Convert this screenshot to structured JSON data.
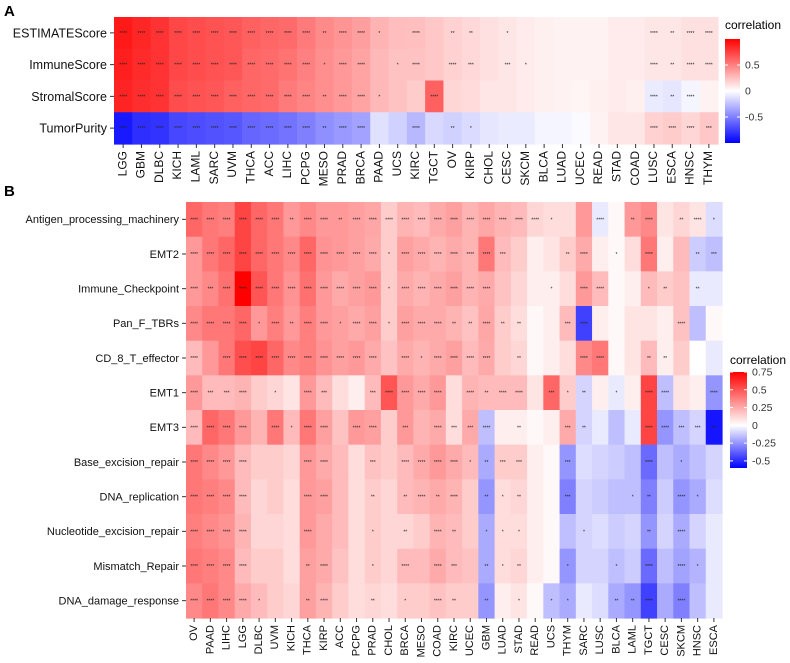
{
  "chart_data": [
    {
      "panel_label": "A",
      "type": "heatmap",
      "columns": [
        "LGG",
        "GBM",
        "DLBC",
        "KICH",
        "LAML",
        "SARC",
        "UVM",
        "THCA",
        "ACC",
        "LIHC",
        "PCPG",
        "MESO",
        "PRAD",
        "BRCA",
        "PAAD",
        "UCS",
        "KIRC",
        "TGCT",
        "OV",
        "KIRP",
        "CHOL",
        "CESC",
        "SKCM",
        "BLCA",
        "LUAD",
        "UCEC",
        "READ",
        "STAD",
        "COAD",
        "LUSC",
        "ESCA",
        "HNSC",
        "THYM"
      ],
      "rows": [
        "ESTIMATEScore",
        "ImmuneScore",
        "StromalScore",
        "TumorPurity"
      ],
      "values": [
        [
          0.9,
          0.85,
          0.8,
          0.72,
          0.7,
          0.68,
          0.66,
          0.62,
          0.6,
          0.58,
          0.52,
          0.46,
          0.42,
          0.38,
          0.3,
          0.26,
          0.25,
          0.22,
          0.18,
          0.15,
          0.12,
          0.1,
          0.08,
          0.06,
          0.05,
          0.05,
          0.05,
          0.08,
          0.08,
          0.1,
          0.1,
          0.12,
          0.12
        ],
        [
          0.88,
          0.83,
          0.8,
          0.72,
          0.7,
          0.68,
          0.66,
          0.6,
          0.58,
          0.55,
          0.5,
          0.44,
          0.4,
          0.36,
          0.28,
          0.24,
          0.24,
          0.22,
          0.18,
          0.15,
          0.12,
          0.1,
          0.08,
          0.06,
          0.05,
          0.05,
          0.05,
          0.08,
          0.08,
          0.1,
          0.1,
          0.12,
          0.12
        ],
        [
          0.86,
          0.82,
          0.8,
          0.7,
          0.68,
          0.66,
          0.62,
          0.6,
          0.58,
          0.52,
          0.48,
          0.44,
          0.4,
          0.36,
          0.28,
          0.24,
          0.2,
          0.62,
          0.16,
          0.14,
          0.1,
          0.1,
          0.08,
          0.06,
          0.05,
          0.04,
          0.06,
          0.08,
          0.06,
          -0.08,
          -0.1,
          -0.04,
          0.05
        ],
        [
          -0.9,
          -0.82,
          -0.8,
          -0.72,
          -0.7,
          -0.68,
          -0.66,
          -0.6,
          -0.58,
          -0.55,
          -0.5,
          -0.44,
          -0.4,
          -0.36,
          -0.12,
          -0.18,
          -0.28,
          -0.15,
          -0.18,
          -0.14,
          -0.1,
          -0.08,
          -0.08,
          -0.04,
          -0.04,
          -0.02,
          0.05,
          0.1,
          0.1,
          0.18,
          0.2,
          0.16,
          0.22
        ]
      ],
      "labels": [
        [
          "****",
          "****",
          "****",
          "****",
          "****",
          "****",
          "****",
          "****",
          "****",
          "****",
          "****",
          "**",
          "****",
          "****",
          "*",
          "",
          "****",
          "",
          "**",
          "**",
          "",
          "*",
          "",
          "",
          "",
          "",
          "",
          "",
          "",
          "****",
          "**",
          "****",
          "****"
        ],
        [
          "****",
          "****",
          "****",
          "****",
          "****",
          "****",
          "****",
          "****",
          "****",
          "****",
          "****",
          "*",
          "****",
          "****",
          "",
          "*",
          "****",
          "",
          "****",
          "***",
          "",
          "***",
          "*",
          "",
          "",
          "",
          "",
          "",
          "",
          "****",
          "**",
          "****",
          "****"
        ],
        [
          "****",
          "****",
          "****",
          "****",
          "****",
          "****",
          "****",
          "****",
          "****",
          "****",
          "****",
          "**",
          "****",
          "****",
          "*",
          "",
          "",
          "****",
          "",
          "",
          "",
          "",
          "",
          "",
          "",
          "",
          "",
          "",
          "",
          "****",
          "**",
          "****",
          ""
        ],
        [
          "****",
          "****",
          "****",
          "****",
          "****",
          "****",
          "****",
          "****",
          "****",
          "****",
          "****",
          "**",
          "****",
          "****",
          "",
          "",
          "****",
          "",
          "**",
          "*",
          "",
          "",
          "",
          "",
          "",
          "",
          "",
          "",
          "",
          "****",
          "****",
          "****",
          "***"
        ]
      ],
      "legend": {
        "title": "correlation",
        "ticks": [
          0.5,
          0.0,
          -0.5
        ],
        "min": -1,
        "max": 1
      }
    },
    {
      "panel_label": "B",
      "type": "heatmap",
      "columns": [
        "OV",
        "PAAD",
        "LIHC",
        "LGG",
        "DLBC",
        "UVM",
        "KICH",
        "THCA",
        "KIRP",
        "ACC",
        "PCPG",
        "PRAD",
        "CHOL",
        "BRCA",
        "MESO",
        "COAD",
        "KIRC",
        "UCEC",
        "GBM",
        "LUAD",
        "STAD",
        "READ",
        "UCS",
        "THYM",
        "SARC",
        "LUSC",
        "BLCA",
        "LAML",
        "TGCT",
        "CESC",
        "SKCM",
        "HNSC",
        "ESCA"
      ],
      "rows": [
        "Antigen_processing_machinery",
        "EMT2",
        "Immune_Checkpoint",
        "Pan_F_TBRs",
        "CD_8_T_effector",
        "EMT1",
        "EMT3",
        "Base_excision_repair",
        "DNA_replication",
        "Nucleotide_excision_repair",
        "Mismatch_Repair",
        "DNA_damage_response"
      ],
      "values": [
        [
          0.45,
          0.4,
          0.38,
          0.55,
          0.45,
          0.4,
          0.3,
          0.35,
          0.3,
          0.3,
          0.28,
          0.26,
          0.15,
          0.22,
          0.2,
          0.25,
          0.28,
          0.22,
          0.26,
          0.22,
          0.2,
          0.12,
          0.1,
          0.1,
          0.3,
          -0.05,
          0.02,
          0.3,
          0.35,
          0.08,
          0.12,
          0.08,
          -0.08
        ],
        [
          0.3,
          0.4,
          0.45,
          0.55,
          0.45,
          0.4,
          0.35,
          0.45,
          0.32,
          0.3,
          0.28,
          0.25,
          0.15,
          0.28,
          0.25,
          0.22,
          0.25,
          0.22,
          0.4,
          0.2,
          0.15,
          0.05,
          0.08,
          0.15,
          0.25,
          0.05,
          0.02,
          0.1,
          0.4,
          0.05,
          0.2,
          -0.12,
          -0.15
        ],
        [
          0.3,
          0.35,
          0.42,
          0.75,
          0.5,
          0.4,
          0.32,
          0.42,
          0.3,
          0.25,
          0.28,
          0.3,
          0.15,
          0.25,
          0.22,
          0.25,
          0.28,
          0.22,
          0.25,
          0.18,
          0.12,
          0.05,
          0.05,
          0.1,
          0.3,
          0.2,
          0.02,
          0.05,
          0.2,
          0.15,
          0.18,
          -0.05,
          -0.05
        ],
        [
          0.35,
          0.4,
          0.4,
          0.45,
          0.3,
          0.38,
          0.3,
          0.38,
          0.3,
          0.28,
          0.25,
          0.28,
          0.15,
          0.28,
          0.25,
          0.25,
          0.22,
          0.18,
          0.26,
          0.15,
          0.1,
          0.02,
          0.05,
          0.2,
          -0.45,
          0.05,
          0.02,
          0.08,
          0.08,
          0.05,
          0.18,
          -0.15,
          0.02
        ],
        [
          0.2,
          0.3,
          0.4,
          0.52,
          0.55,
          0.45,
          0.35,
          0.38,
          0.32,
          0.28,
          0.3,
          0.25,
          0.18,
          0.25,
          0.22,
          0.25,
          0.28,
          0.2,
          0.25,
          0.15,
          0.12,
          0.02,
          0.05,
          0.1,
          0.35,
          0.4,
          0.02,
          0.08,
          0.2,
          0.05,
          0.15,
          0.0,
          -0.05
        ],
        [
          0.3,
          0.2,
          0.2,
          0.22,
          0.15,
          0.12,
          0.08,
          0.3,
          0.2,
          0.1,
          0.05,
          0.2,
          0.5,
          0.3,
          0.25,
          0.3,
          0.1,
          0.22,
          0.2,
          0.2,
          0.2,
          0.08,
          0.45,
          0.15,
          -0.1,
          0.05,
          -0.05,
          0.05,
          0.55,
          -0.15,
          0.08,
          0.05,
          -0.25
        ],
        [
          0.2,
          0.45,
          0.4,
          0.3,
          0.22,
          0.4,
          0.2,
          0.4,
          0.28,
          0.18,
          0.3,
          0.28,
          0.15,
          0.3,
          0.22,
          0.25,
          0.1,
          0.25,
          -0.15,
          0.05,
          0.05,
          0.02,
          0.05,
          0.25,
          -0.1,
          -0.05,
          -0.15,
          -0.05,
          0.55,
          -0.25,
          -0.15,
          -0.1,
          -0.55
        ],
        [
          0.4,
          0.35,
          0.3,
          0.2,
          0.15,
          0.15,
          0.12,
          0.3,
          0.25,
          0.2,
          0.1,
          0.18,
          0.15,
          0.2,
          0.25,
          0.3,
          0.25,
          0.2,
          -0.2,
          0.15,
          0.15,
          0.05,
          0.02,
          -0.25,
          -0.08,
          -0.1,
          -0.12,
          -0.15,
          -0.35,
          -0.15,
          -0.2,
          -0.15,
          -0.1
        ],
        [
          0.4,
          0.38,
          0.35,
          0.2,
          0.12,
          0.15,
          0.1,
          0.3,
          0.28,
          0.2,
          0.1,
          0.15,
          0.12,
          0.2,
          0.22,
          0.25,
          0.22,
          0.15,
          -0.25,
          0.1,
          0.12,
          0.05,
          0.02,
          -0.3,
          -0.1,
          -0.12,
          -0.15,
          -0.15,
          -0.3,
          -0.12,
          -0.25,
          -0.2,
          -0.08
        ],
        [
          0.38,
          0.35,
          0.32,
          0.22,
          0.12,
          0.12,
          0.1,
          0.3,
          0.25,
          0.2,
          0.1,
          0.15,
          0.12,
          0.12,
          0.15,
          0.22,
          0.2,
          0.15,
          -0.2,
          0.1,
          0.1,
          0.05,
          0.02,
          -0.15,
          -0.1,
          -0.08,
          -0.12,
          -0.1,
          -0.25,
          -0.1,
          -0.2,
          -0.1,
          -0.05
        ],
        [
          0.4,
          0.38,
          0.35,
          0.2,
          0.15,
          0.15,
          0.1,
          0.28,
          0.25,
          0.18,
          0.1,
          0.15,
          0.12,
          0.2,
          0.2,
          0.25,
          0.2,
          0.18,
          -0.2,
          0.1,
          0.12,
          0.05,
          0.02,
          -0.25,
          -0.1,
          -0.1,
          -0.15,
          -0.12,
          -0.35,
          -0.15,
          -0.22,
          -0.18,
          -0.05
        ],
        [
          0.35,
          0.4,
          0.35,
          0.25,
          0.2,
          0.15,
          0.12,
          0.28,
          0.22,
          0.15,
          0.1,
          0.12,
          0.1,
          0.15,
          0.15,
          0.18,
          0.15,
          0.15,
          -0.25,
          0.05,
          0.08,
          0.02,
          -0.15,
          -0.2,
          -0.05,
          -0.08,
          -0.2,
          -0.25,
          -0.45,
          -0.2,
          -0.3,
          -0.15,
          -0.05
        ]
      ],
      "labels": [
        [
          "****",
          "****",
          "****",
          "****",
          "****",
          "****",
          "**",
          "****",
          "****",
          "**",
          "****",
          "****",
          "****",
          "****",
          "****",
          "****",
          "****",
          "****",
          "****",
          "****",
          "****",
          "****",
          "*",
          "",
          "",
          "****",
          "",
          "**",
          "****",
          "",
          "**",
          "****",
          "*"
        ],
        [
          "****",
          "****",
          "****",
          "****",
          "****",
          "****",
          "****",
          "****",
          "****",
          "****",
          "****",
          "****",
          "*",
          "****",
          "****",
          "****",
          "****",
          "****",
          "****",
          "***",
          "",
          "",
          "",
          "**",
          "****",
          "",
          "*",
          "",
          "****",
          "",
          "",
          "**",
          "***"
        ],
        [
          "****",
          "***",
          "****",
          "****",
          "****",
          "****",
          "****",
          "****",
          "****",
          "****",
          "****",
          "****",
          "*",
          "****",
          "****",
          "****",
          "****",
          "****",
          "****",
          "",
          "",
          "",
          "*",
          "",
          "****",
          "****",
          "",
          "",
          "*",
          "**",
          "",
          "**",
          ""
        ],
        [
          "****",
          "****",
          "****",
          "****",
          "*",
          "****",
          "**",
          "****",
          "****",
          "*",
          "****",
          "****",
          "*",
          "****",
          "****",
          "****",
          "**",
          "**",
          "****",
          "**",
          "**",
          "",
          "",
          "***",
          "****",
          "",
          "",
          "",
          "",
          "",
          "****",
          "",
          ""
        ],
        [
          "****",
          "",
          "****",
          "****",
          "****",
          "****",
          "****",
          "****",
          "****",
          "****",
          "****",
          "****",
          "",
          "****",
          "*",
          "****",
          "****",
          "****",
          "****",
          "",
          "**",
          "",
          "",
          "",
          "****",
          "****",
          "",
          "",
          "**",
          "**",
          "",
          "",
          ""
        ],
        [
          "****",
          "***",
          "***",
          "****",
          "",
          "*",
          "",
          "****",
          "***",
          "",
          "",
          "***",
          "****",
          "****",
          "****",
          "****",
          "",
          "****",
          "**",
          "****",
          "****",
          "",
          "***",
          "*",
          "**",
          "",
          "*",
          "",
          "****",
          "****",
          "",
          "",
          "****"
        ],
        [
          "****",
          "****",
          "****",
          "****",
          "",
          "****",
          "*",
          "****",
          "****",
          "",
          "****",
          "****",
          "",
          "***",
          "",
          "****",
          "***",
          "***",
          "****",
          "",
          "**",
          "",
          "",
          "***",
          "**",
          "",
          "",
          "",
          "****",
          "****",
          "***",
          "***",
          "***"
        ],
        [
          "****",
          "****",
          "****",
          "****",
          "",
          "",
          "",
          "****",
          "****",
          "",
          "",
          "***",
          "",
          "****",
          "****",
          "****",
          "****",
          "*",
          "**",
          "***",
          "***",
          "",
          "",
          "***",
          "",
          "",
          "",
          "",
          "****",
          "",
          "*",
          "",
          ""
        ],
        [
          "****",
          "****",
          "****",
          "****",
          "",
          "",
          "",
          "****",
          "****",
          "",
          "",
          "**",
          "",
          "**",
          "****",
          "**",
          "****",
          "",
          "**",
          "*",
          "**",
          "",
          "",
          "***",
          "",
          "",
          "",
          "*",
          "**",
          "",
          "****",
          "*",
          ""
        ],
        [
          "****",
          "****",
          "****",
          "****",
          "",
          "",
          "",
          "****",
          "",
          "",
          "",
          "*",
          "",
          "**",
          "",
          "****",
          "**",
          "",
          "*",
          "*",
          "*",
          "",
          "",
          "",
          "*",
          "",
          "",
          "",
          "**",
          "",
          "****",
          "",
          ""
        ],
        [
          "****",
          "****",
          "****",
          "****",
          "",
          "",
          "",
          "**",
          "****",
          "",
          "",
          "*",
          "",
          "****",
          "",
          "****",
          "***",
          "",
          "**",
          "*",
          "**",
          "",
          "",
          "*",
          "",
          "",
          "*",
          "",
          "****",
          "",
          "****",
          "*",
          ""
        ],
        [
          "****",
          "****",
          "****",
          "****",
          "*",
          "",
          "",
          "**",
          "****",
          "",
          "",
          "**",
          "",
          "*",
          "",
          "****",
          "**",
          "",
          "**",
          "",
          "*",
          "",
          "*",
          "*",
          "",
          "",
          "**",
          "**",
          "****",
          "",
          "****",
          "",
          ""
        ]
      ],
      "legend": {
        "title": "correlation",
        "ticks": [
          0.75,
          0.5,
          0.25,
          0.0,
          -0.25,
          -0.5
        ],
        "min": -0.6,
        "max": 0.75
      }
    }
  ]
}
